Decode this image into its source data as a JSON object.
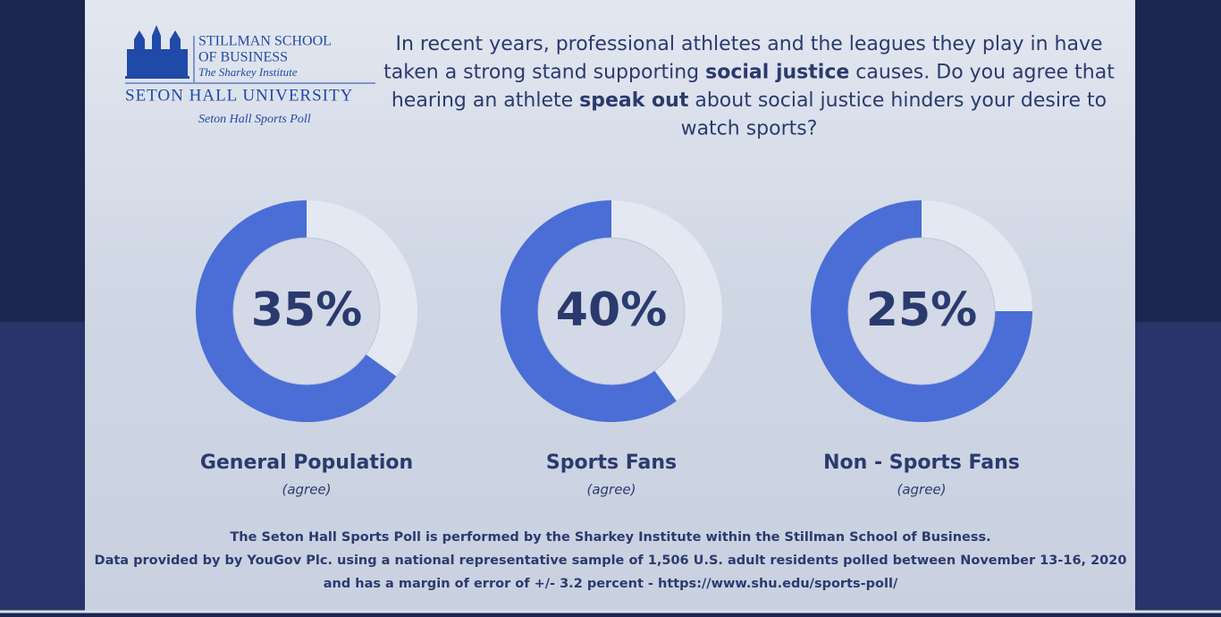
{
  "logo": {
    "school_1": "STILLMAN SCHOOL",
    "school_2": "OF BUSINESS",
    "institute": "The Sharkey Institute",
    "university": "SETON HALL UNIVERSITY",
    "poll": "Seton Hall Sports Poll"
  },
  "question": [
    [
      {
        "text": "In recent years, professional athletes and the leagues they play in have",
        "bold": false
      }
    ],
    [
      {
        "text": "taken a strong stand supporting ",
        "bold": false
      },
      {
        "text": "social justice",
        "bold": true
      },
      {
        "text": " causes. Do you agree that",
        "bold": false
      }
    ],
    [
      {
        "text": "hearing an athlete ",
        "bold": false
      },
      {
        "text": "speak out",
        "bold": true
      },
      {
        "text": " about social justice hinders your desire to",
        "bold": false
      }
    ],
    [
      {
        "text": "watch sports?",
        "bold": false
      }
    ]
  ],
  "chart_data": [
    {
      "type": "pie",
      "title": "General Population",
      "subtitle": "(agree)",
      "values": [
        35,
        65
      ],
      "value_labels": [
        "35%",
        null
      ],
      "colors": [
        "#e3e8f2",
        "#4a6ed6"
      ]
    },
    {
      "type": "pie",
      "title": "Sports Fans",
      "subtitle": "(agree)",
      "values": [
        40,
        60
      ],
      "value_labels": [
        "40%",
        null
      ],
      "colors": [
        "#e3e8f2",
        "#4a6ed6"
      ]
    },
    {
      "type": "pie",
      "title": "Non - Sports Fans",
      "subtitle": "(agree)",
      "values": [
        25,
        75
      ],
      "value_labels": [
        "25%",
        null
      ],
      "colors": [
        "#e3e8f2",
        "#4a6ed6"
      ]
    }
  ],
  "footer": [
    "The Seton Hall Sports Poll is performed by the Sharkey Institute within the Stillman School of Business.",
    "Data provided by by YouGov Plc. using a national representative sample of 1,506 U.S. adult residents polled between November 13-16, 2020",
    "and has a margin of error of +/- 3.2 percent - https://www.shu.edu/sports-poll/"
  ]
}
